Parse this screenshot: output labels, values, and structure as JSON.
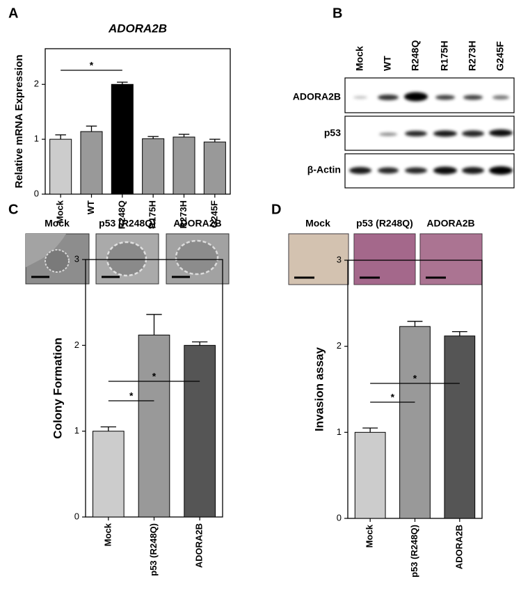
{
  "panels": [
    "A",
    "B",
    "C",
    "D"
  ],
  "blot": {
    "lanes": [
      "Mock",
      "WT",
      "R248Q",
      "R175H",
      "R273H",
      "G245F"
    ],
    "rows": [
      "ADORA2B",
      "p53",
      "β-Actin"
    ]
  },
  "micrographs": [
    {
      "labels": [
        "Mock",
        "p53 (R248Q)",
        "ADORA2B"
      ]
    },
    {
      "labels": [
        "Mock",
        "p53 (R248Q)",
        "ADORA2B"
      ]
    }
  ],
  "chart_data": [
    {
      "type": "bar",
      "title": "ADORA2B",
      "ylabel": "Relative mRNA Expression",
      "categories": [
        "Mock",
        "WT",
        "R248Q",
        "R175H",
        "R273H",
        "G245F"
      ],
      "values": [
        1.0,
        1.14,
        2.0,
        1.01,
        1.04,
        0.95
      ],
      "errors": [
        0.08,
        0.1,
        0.04,
        0.04,
        0.05,
        0.05
      ],
      "colors": [
        "#cccccc",
        "#999999",
        "#000000",
        "#999999",
        "#999999",
        "#999999"
      ],
      "ylim": [
        0,
        2.65
      ],
      "yticks": [
        0,
        1,
        2
      ],
      "significance": [
        {
          "label": "*",
          "pair": [
            "Mock",
            "R248Q"
          ]
        }
      ]
    },
    {
      "type": "bar",
      "ylabel": "Colony Formation",
      "categories": [
        "Mock",
        "p53 (R248Q)",
        "ADORA2B"
      ],
      "values": [
        1.0,
        2.12,
        2.0
      ],
      "errors": [
        0.05,
        0.24,
        0.04
      ],
      "colors": [
        "#cccccc",
        "#999999",
        "#555555"
      ],
      "ylim": [
        0,
        3
      ],
      "yticks": [
        0,
        1,
        2,
        3
      ],
      "significance": [
        {
          "label": "*",
          "pair": [
            "Mock",
            "p53 (R248Q)"
          ]
        },
        {
          "label": "*",
          "pair": [
            "Mock",
            "ADORA2B"
          ]
        }
      ]
    },
    {
      "type": "bar",
      "ylabel": "Invasion assay",
      "categories": [
        "Mock",
        "p53 (R248Q)",
        "ADORA2B"
      ],
      "values": [
        1.0,
        2.23,
        2.12
      ],
      "errors": [
        0.05,
        0.06,
        0.05
      ],
      "colors": [
        "#cccccc",
        "#999999",
        "#555555"
      ],
      "ylim": [
        0,
        3
      ],
      "yticks": [
        0,
        1,
        2,
        3
      ],
      "significance": [
        {
          "label": "*",
          "pair": [
            "Mock",
            "p53 (R248Q)"
          ]
        },
        {
          "label": "*",
          "pair": [
            "Mock",
            "ADORA2B"
          ]
        }
      ]
    }
  ]
}
